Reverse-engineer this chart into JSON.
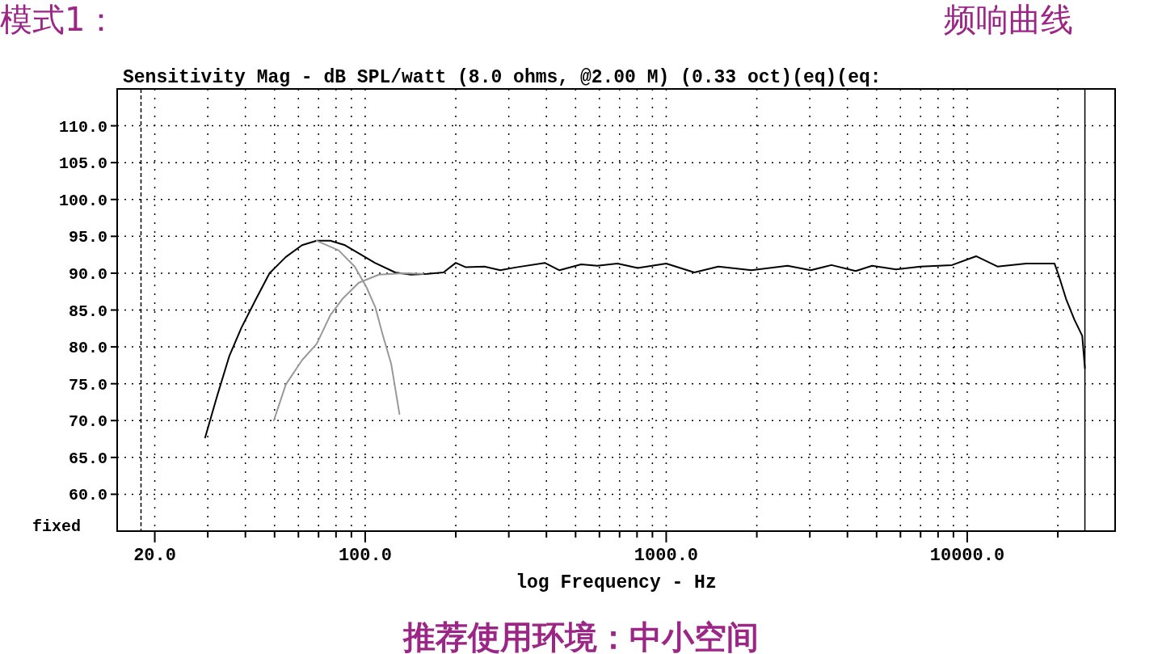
{
  "chart_data": {
    "type": "line",
    "title": "频响曲线",
    "subtitle": "Sensitivity Mag - dB SPL/watt (8.0 ohms, @2.00 M) (0.33 oct)(eq)(eq:",
    "xlabel": "log Frequency - Hz",
    "annotations": [
      "模式1：",
      "fixed",
      "推荐使用环境：中小空间"
    ],
    "log": "x",
    "grid": true,
    "marker": "none",
    "line_style": "solid",
    "xlim": [
      15,
      31000
    ],
    "ylim": [
      55,
      115
    ],
    "xticks": [
      {
        "value": 20,
        "label": "20.0"
      },
      {
        "value": 30,
        "label": null
      },
      {
        "value": 40,
        "label": null
      },
      {
        "value": 50,
        "label": null
      },
      {
        "value": 60,
        "label": null
      },
      {
        "value": 70,
        "label": null
      },
      {
        "value": 80,
        "label": null
      },
      {
        "value": 90,
        "label": null
      },
      {
        "value": 100,
        "label": "100.0"
      },
      {
        "value": 200,
        "label": null
      },
      {
        "value": 300,
        "label": null
      },
      {
        "value": 400,
        "label": null
      },
      {
        "value": 500,
        "label": null
      },
      {
        "value": 600,
        "label": null
      },
      {
        "value": 700,
        "label": null
      },
      {
        "value": 800,
        "label": null
      },
      {
        "value": 900,
        "label": null
      },
      {
        "value": 1000,
        "label": "1000.0"
      },
      {
        "value": 2000,
        "label": null
      },
      {
        "value": 3000,
        "label": null
      },
      {
        "value": 4000,
        "label": null
      },
      {
        "value": 5000,
        "label": null
      },
      {
        "value": 6000,
        "label": null
      },
      {
        "value": 7000,
        "label": null
      },
      {
        "value": 8000,
        "label": null
      },
      {
        "value": 9000,
        "label": null
      },
      {
        "value": 10000,
        "label": "10000.0"
      },
      {
        "value": 20000,
        "label": null
      }
    ],
    "yticks": [
      {
        "value": 60,
        "label": "60.0"
      },
      {
        "value": 65,
        "label": "65.0"
      },
      {
        "value": 70,
        "label": "70.0"
      },
      {
        "value": 75,
        "label": "75.0"
      },
      {
        "value": 80,
        "label": "80.0"
      },
      {
        "value": 85,
        "label": "85.0"
      },
      {
        "value": 90,
        "label": "90.0"
      },
      {
        "value": 95,
        "label": "95.0"
      },
      {
        "value": 100,
        "label": "100.0"
      },
      {
        "value": 105,
        "label": "105.0"
      },
      {
        "value": 110,
        "label": "110.0"
      }
    ],
    "ref_lines": [
      {
        "axis": "x",
        "value": 18,
        "line_style": "dashed",
        "color": "#000000"
      },
      {
        "axis": "x",
        "value": 24600,
        "line_style": "solid",
        "color": "#000000"
      }
    ],
    "series": [
      {
        "color": "#000000",
        "x": [
          29.4,
          32.2,
          35.4,
          38.8,
          43.4,
          48.1,
          54.5,
          61.7,
          69,
          76.6,
          85.7,
          95.2,
          107.7,
          125.8,
          142,
          161,
          182,
          200,
          216,
          249,
          281,
          318,
          395,
          442,
          522,
          590,
          689,
          804,
          1000,
          1240,
          1490,
          1920,
          2530,
          3020,
          3540,
          4260,
          4830,
          5800,
          7000,
          8900,
          10700,
          12600,
          15700,
          19500,
          20100,
          21300,
          22700,
          24100,
          24600
        ],
        "values": [
          67.7,
          73.3,
          78.8,
          82.6,
          86.5,
          90,
          92.2,
          93.8,
          94.4,
          94.4,
          93.8,
          92.7,
          91.4,
          90.1,
          89.8,
          89.9,
          90.1,
          91.4,
          90.8,
          90.9,
          90.4,
          90.8,
          91.4,
          90.4,
          91.2,
          91,
          91.3,
          90.7,
          91.3,
          90.1,
          90.9,
          90.4,
          91,
          90.4,
          91.1,
          90.3,
          91,
          90.5,
          90.9,
          91.1,
          92.3,
          90.9,
          91.3,
          91.3,
          89.8,
          86.5,
          83.7,
          81.5,
          77.1
        ]
      },
      {
        "color": "#999999",
        "x": [
          69,
          81.6,
          92.3,
          101,
          108,
          114.6,
          122,
          130
        ],
        "values": [
          94.4,
          93.1,
          90.9,
          88.1,
          85.4,
          81.5,
          77.7,
          70.9
        ]
      },
      {
        "color": "#999999",
        "x": [
          49.7,
          54.5,
          61.7,
          69,
          76.6,
          84,
          95.2,
          111,
          134,
          156
        ],
        "values": [
          70,
          74.9,
          78.2,
          80.4,
          84.3,
          86.5,
          88.7,
          89.8,
          90,
          89.9
        ]
      }
    ]
  }
}
